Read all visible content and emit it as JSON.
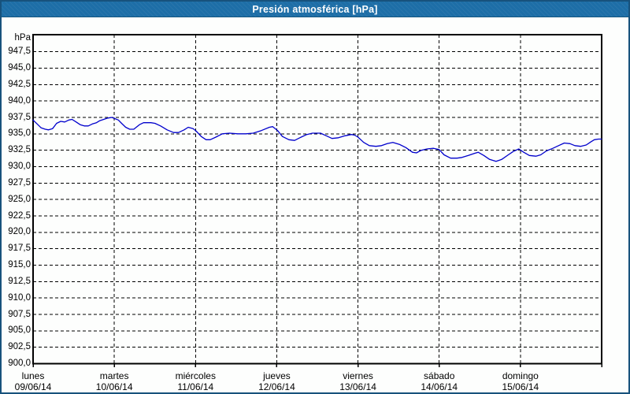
{
  "window": {
    "title": "Presión atmosférica [hPa]"
  },
  "colors": {
    "titlebar_bg": "#1d6ea7",
    "titlebar_text": "#ffffff",
    "window_border": "#17527c",
    "background": "#fdfefd",
    "plot_frame": "#000000",
    "gridline": "#000000",
    "series_line": "#0000cc",
    "label_text": "#000000"
  },
  "chart_data": {
    "type": "line",
    "title": "Presión atmosférica [hPa]",
    "grid": "dashed",
    "legend": "none",
    "y_axis": {
      "unit": "hPa",
      "min": 900,
      "max": 950.1,
      "tick_step": 2.5,
      "ticks": [
        {
          "v": 947.5,
          "label": "947,5"
        },
        {
          "v": 945.0,
          "label": "945,0"
        },
        {
          "v": 942.5,
          "label": "942,5"
        },
        {
          "v": 940.0,
          "label": "940,0"
        },
        {
          "v": 937.5,
          "label": "937,5"
        },
        {
          "v": 935.0,
          "label": "935,0"
        },
        {
          "v": 932.5,
          "label": "932,5"
        },
        {
          "v": 930.0,
          "label": "930,0"
        },
        {
          "v": 927.5,
          "label": "927,5"
        },
        {
          "v": 925.0,
          "label": "925,0"
        },
        {
          "v": 922.5,
          "label": "922,5"
        },
        {
          "v": 920.0,
          "label": "920,0"
        },
        {
          "v": 917.5,
          "label": "917,5"
        },
        {
          "v": 915.0,
          "label": "915,0"
        },
        {
          "v": 912.5,
          "label": "912,5"
        },
        {
          "v": 910.0,
          "label": "910,0"
        },
        {
          "v": 907.5,
          "label": "907,5"
        },
        {
          "v": 905.0,
          "label": "905,0"
        },
        {
          "v": 902.5,
          "label": "902,5"
        },
        {
          "v": 900.0,
          "label": "900,0"
        }
      ]
    },
    "x_axis": {
      "days": [
        {
          "name": "lunes",
          "date": "09/06/14"
        },
        {
          "name": "martes",
          "date": "10/06/14"
        },
        {
          "name": "miércoles",
          "date": "11/06/14"
        },
        {
          "name": "jueves",
          "date": "12/06/14"
        },
        {
          "name": "viernes",
          "date": "13/06/14"
        },
        {
          "name": "sábado",
          "date": "14/06/14"
        },
        {
          "name": "domingo",
          "date": "15/06/14"
        }
      ]
    },
    "series": [
      {
        "name": "Presión atmosférica",
        "color": "#0000cc",
        "points": [
          [
            0.0,
            937.1
          ],
          [
            0.05,
            936.5
          ],
          [
            0.1,
            935.9
          ],
          [
            0.15,
            935.7
          ],
          [
            0.19,
            935.6
          ],
          [
            0.24,
            935.8
          ],
          [
            0.29,
            936.6
          ],
          [
            0.34,
            936.9
          ],
          [
            0.39,
            936.8
          ],
          [
            0.44,
            937.1
          ],
          [
            0.48,
            937.2
          ],
          [
            0.53,
            936.8
          ],
          [
            0.58,
            936.4
          ],
          [
            0.63,
            936.2
          ],
          [
            0.68,
            936.2
          ],
          [
            0.73,
            936.5
          ],
          [
            0.78,
            936.7
          ],
          [
            0.82,
            937.0
          ],
          [
            0.87,
            937.2
          ],
          [
            0.92,
            937.4
          ],
          [
            0.97,
            937.5
          ],
          [
            1.05,
            937.1
          ],
          [
            1.09,
            936.6
          ],
          [
            1.14,
            936.0
          ],
          [
            1.19,
            935.7
          ],
          [
            1.24,
            935.7
          ],
          [
            1.31,
            936.4
          ],
          [
            1.36,
            936.7
          ],
          [
            1.45,
            936.7
          ],
          [
            1.5,
            936.6
          ],
          [
            1.57,
            936.2
          ],
          [
            1.65,
            935.6
          ],
          [
            1.73,
            935.2
          ],
          [
            1.79,
            935.2
          ],
          [
            1.86,
            935.6
          ],
          [
            1.91,
            936.0
          ],
          [
            1.97,
            935.8
          ],
          [
            2.01,
            935.4
          ],
          [
            2.07,
            934.6
          ],
          [
            2.13,
            934.1
          ],
          [
            2.18,
            934.1
          ],
          [
            2.25,
            934.5
          ],
          [
            2.33,
            935.0
          ],
          [
            2.42,
            935.1
          ],
          [
            2.52,
            935.0
          ],
          [
            2.62,
            935.0
          ],
          [
            2.71,
            935.1
          ],
          [
            2.81,
            935.5
          ],
          [
            2.91,
            936.0
          ],
          [
            2.95,
            936.1
          ],
          [
            3.01,
            935.5
          ],
          [
            3.07,
            934.6
          ],
          [
            3.15,
            934.1
          ],
          [
            3.22,
            934.0
          ],
          [
            3.3,
            934.5
          ],
          [
            3.37,
            934.9
          ],
          [
            3.44,
            935.1
          ],
          [
            3.54,
            935.1
          ],
          [
            3.61,
            934.7
          ],
          [
            3.68,
            934.3
          ],
          [
            3.76,
            934.4
          ],
          [
            3.84,
            934.7
          ],
          [
            3.92,
            934.9
          ],
          [
            3.96,
            934.8
          ],
          [
            4.0,
            934.5
          ],
          [
            4.07,
            933.7
          ],
          [
            4.14,
            933.2
          ],
          [
            4.22,
            933.1
          ],
          [
            4.29,
            933.2
          ],
          [
            4.36,
            933.5
          ],
          [
            4.43,
            933.7
          ],
          [
            4.51,
            933.4
          ],
          [
            4.59,
            932.9
          ],
          [
            4.67,
            932.2
          ],
          [
            4.72,
            932.1
          ],
          [
            4.78,
            932.5
          ],
          [
            4.85,
            932.7
          ],
          [
            4.93,
            932.8
          ],
          [
            5.0,
            932.6
          ],
          [
            5.06,
            931.8
          ],
          [
            5.14,
            931.3
          ],
          [
            5.22,
            931.3
          ],
          [
            5.28,
            931.4
          ],
          [
            5.36,
            931.7
          ],
          [
            5.43,
            932.0
          ],
          [
            5.48,
            932.2
          ],
          [
            5.55,
            931.7
          ],
          [
            5.62,
            931.1
          ],
          [
            5.7,
            930.8
          ],
          [
            5.77,
            931.1
          ],
          [
            5.85,
            931.8
          ],
          [
            5.91,
            932.3
          ],
          [
            5.98,
            932.7
          ],
          [
            6.04,
            932.2
          ],
          [
            6.11,
            931.7
          ],
          [
            6.19,
            931.6
          ],
          [
            6.25,
            931.8
          ],
          [
            6.32,
            932.4
          ],
          [
            6.4,
            932.8
          ],
          [
            6.47,
            933.2
          ],
          [
            6.54,
            933.6
          ],
          [
            6.61,
            933.5
          ],
          [
            6.67,
            933.2
          ],
          [
            6.74,
            933.1
          ],
          [
            6.81,
            933.3
          ],
          [
            6.87,
            933.8
          ],
          [
            6.91,
            934.1
          ],
          [
            6.96,
            934.2
          ],
          [
            7.0,
            934.2
          ]
        ]
      }
    ]
  }
}
